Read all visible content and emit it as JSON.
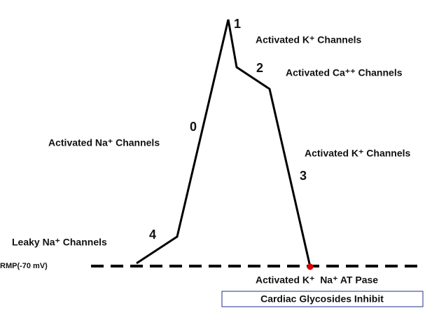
{
  "phases": [
    {
      "number": "4",
      "label": "Leaky Na⁺ Channels"
    },
    {
      "number": "0",
      "label": "Activated Na⁺ Channels"
    },
    {
      "number": "1",
      "label": "Activated K⁺ Channels"
    },
    {
      "number": "2",
      "label": "Activated Ca⁺⁺ Channels"
    },
    {
      "number": "3",
      "label": "Activated K⁺ Channels"
    }
  ],
  "rmp_label": "RMP(-70 mV)",
  "pump_label": "Activated K⁺  Na⁺ AT Pase",
  "inhibitor_label": "Cardiac Glycosides Inhibit"
}
